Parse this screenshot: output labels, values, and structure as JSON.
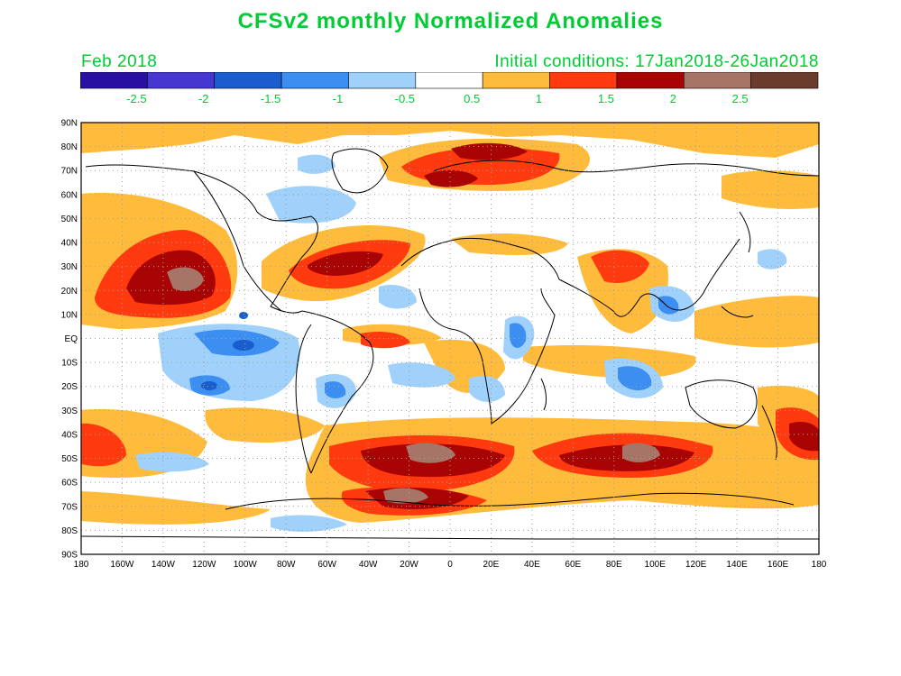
{
  "header": {
    "title": "CFSv2 monthly Normalized Anomalies",
    "month": "Feb 2018",
    "initial_conditions": "Initial conditions: 17Jan2018-26Jan2018"
  },
  "colorbar": {
    "colors": [
      "#2a0fa3",
      "#4737d1",
      "#1a5dcc",
      "#3c8ff0",
      "#9fd1fb",
      "#ffffff",
      "#ffbb3c",
      "#ff3a0e",
      "#a80404",
      "#a77468",
      "#6b3b2e"
    ],
    "labels": [
      "-2.5",
      "-2",
      "-1.5",
      "-1",
      "-0.5",
      "0.5",
      "1",
      "1.5",
      "2",
      "2.5"
    ]
  },
  "map": {
    "lat_labels": [
      "90N",
      "80N",
      "70N",
      "60N",
      "50N",
      "40N",
      "30N",
      "20N",
      "10N",
      "EQ",
      "10S",
      "20S",
      "30S",
      "40S",
      "50S",
      "60S",
      "70S",
      "80S",
      "90S"
    ],
    "lon_labels": [
      "180",
      "160W",
      "140W",
      "120W",
      "100W",
      "80W",
      "60W",
      "40W",
      "20W",
      "0",
      "20E",
      "40E",
      "60E",
      "80E",
      "100E",
      "120E",
      "140E",
      "160E",
      "180"
    ]
  }
}
